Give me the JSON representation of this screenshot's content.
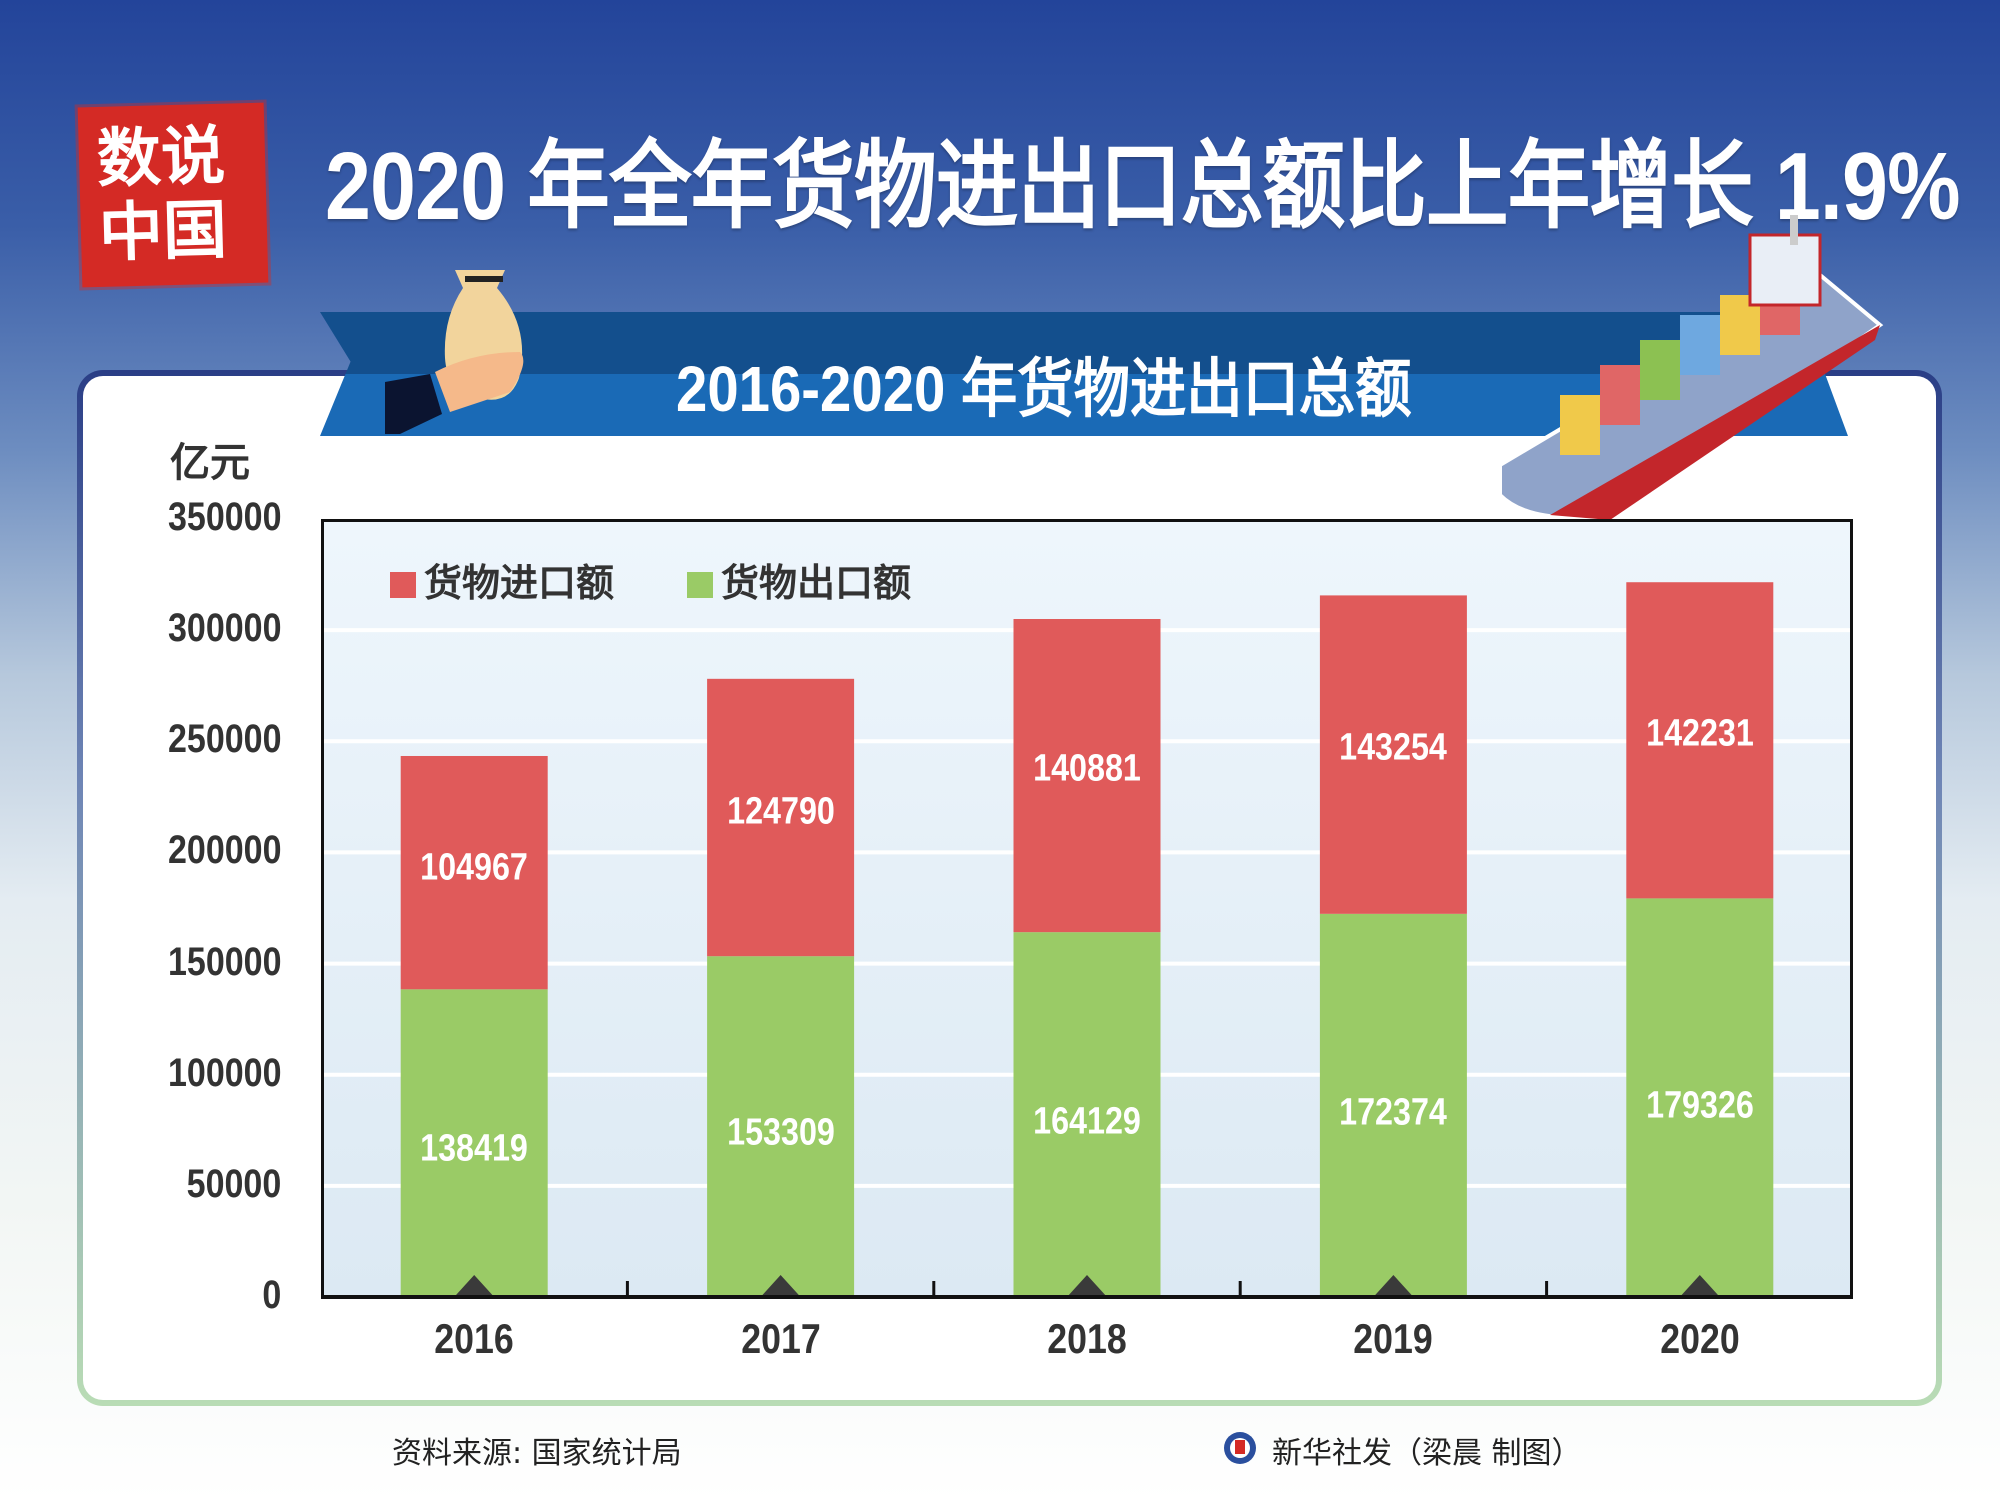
{
  "header": {
    "stamp_text": [
      "数说",
      "中国"
    ],
    "title": "2020 年全年货物进出口总额比上年增长 1.9%",
    "subtitle": "2016-2020 年货物进出口总额"
  },
  "chart_data": {
    "type": "bar",
    "stacked": true,
    "title": "2016-2020 年货物进出口总额",
    "unit_label": "亿元",
    "categories": [
      "2016",
      "2017",
      "2018",
      "2019",
      "2020"
    ],
    "series": [
      {
        "name": "货物出口额",
        "color": "#9acb66",
        "values": [
          138419,
          153309,
          164129,
          172374,
          179326
        ]
      },
      {
        "name": "货物进口额",
        "color": "#e05a5a",
        "values": [
          104967,
          124790,
          140881,
          143254,
          142231
        ]
      }
    ],
    "legend_order": [
      "货物进口额",
      "货物出口额"
    ],
    "legend_colors": [
      "#e05a5a",
      "#9acb66"
    ],
    "ylim": [
      0,
      350000
    ],
    "yticks": [
      "0",
      "50000",
      "100000",
      "150000",
      "200000",
      "250000",
      "300000",
      "350000"
    ],
    "grid": true,
    "legend_position": "top-left"
  },
  "footer": {
    "source": "资料来源: 国家统计局",
    "credit": "新华社发（梁晨 制图）"
  }
}
